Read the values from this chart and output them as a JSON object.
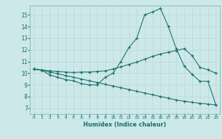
{
  "bg_color": "#cce8e8",
  "grid_color": "#b8d8d8",
  "line_color": "#1a6e6e",
  "xlabel": "Humidex (Indice chaleur)",
  "xlim": [
    -0.5,
    23.5
  ],
  "ylim": [
    6.5,
    15.8
  ],
  "yticks": [
    7,
    8,
    9,
    10,
    11,
    12,
    13,
    14,
    15
  ],
  "xticks": [
    0,
    1,
    2,
    3,
    4,
    5,
    6,
    7,
    8,
    9,
    10,
    11,
    12,
    13,
    14,
    15,
    16,
    17,
    18,
    19,
    20,
    21,
    22,
    23
  ],
  "line1_x": [
    0,
    1,
    2,
    3,
    4,
    5,
    6,
    7,
    8,
    9,
    10,
    11,
    12,
    13,
    14,
    15,
    16,
    17,
    18,
    19,
    20,
    21,
    22,
    23
  ],
  "line1_y": [
    10.35,
    10.25,
    9.85,
    9.65,
    9.45,
    9.35,
    9.1,
    9.0,
    9.0,
    9.65,
    10.0,
    11.0,
    12.2,
    13.0,
    15.0,
    15.25,
    15.55,
    14.0,
    12.1,
    10.6,
    9.9,
    9.3,
    9.3,
    7.3
  ],
  "line2_x": [
    0,
    1,
    2,
    3,
    4,
    5,
    6,
    7,
    8,
    9,
    10,
    11,
    12,
    13,
    14,
    15,
    16,
    17,
    18,
    19,
    20,
    21,
    22,
    23
  ],
  "line2_y": [
    10.35,
    10.28,
    10.2,
    10.15,
    10.1,
    10.05,
    10.1,
    10.1,
    10.15,
    10.2,
    10.35,
    10.55,
    10.75,
    10.95,
    11.2,
    11.45,
    11.65,
    11.8,
    11.95,
    12.1,
    11.5,
    10.5,
    10.3,
    10.0
  ],
  "line3_x": [
    0,
    1,
    2,
    3,
    4,
    5,
    6,
    7,
    8,
    9,
    10,
    11,
    12,
    13,
    14,
    15,
    16,
    17,
    18,
    19,
    20,
    21,
    22,
    23
  ],
  "line3_y": [
    10.35,
    10.25,
    10.1,
    9.95,
    9.8,
    9.65,
    9.5,
    9.35,
    9.2,
    9.05,
    8.9,
    8.75,
    8.6,
    8.45,
    8.3,
    8.15,
    8.0,
    7.85,
    7.7,
    7.6,
    7.5,
    7.42,
    7.35,
    7.28
  ]
}
